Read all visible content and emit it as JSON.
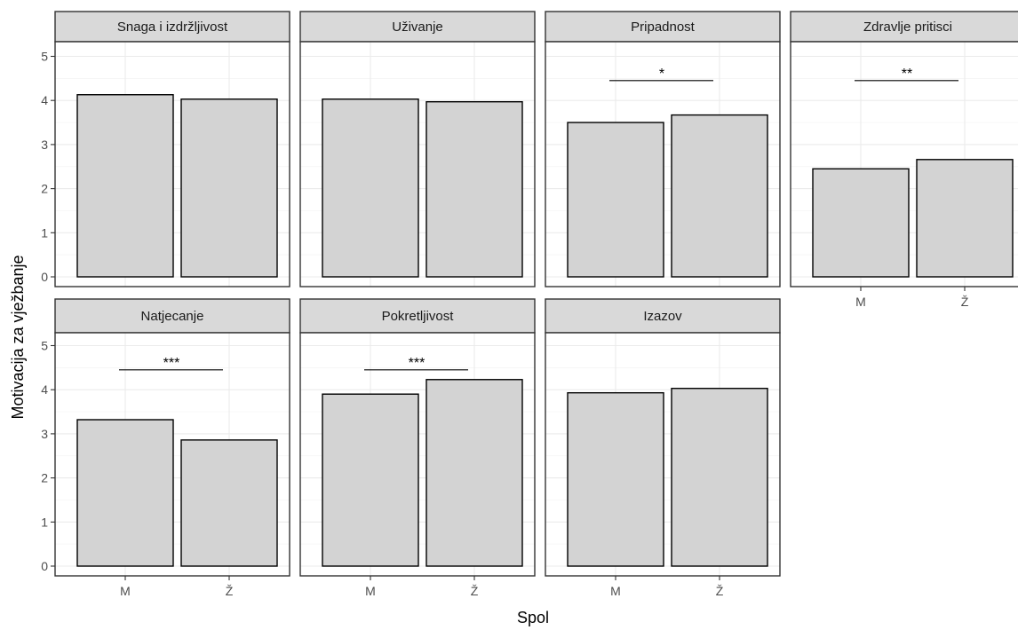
{
  "chart_data": {
    "type": "bar",
    "facet_layout": "wrap",
    "xlabel": "Spol",
    "ylabel": "Motivacija za vježbanje",
    "categories": [
      "M",
      "Ž"
    ],
    "ylim": [
      0,
      5
    ],
    "yticks": [
      0,
      1,
      2,
      3,
      4,
      5
    ],
    "grid": true,
    "colors": {
      "bar_fill": "#d3d3d3",
      "bar_border": "#000000",
      "strip_fill": "#d9d9d9"
    },
    "panels": [
      {
        "title": "Snaga i izdržljivost",
        "values": [
          4.13,
          4.03
        ],
        "significance": ""
      },
      {
        "title": "Uživanje",
        "values": [
          4.03,
          3.97
        ],
        "significance": ""
      },
      {
        "title": "Pripadnost",
        "values": [
          3.5,
          3.67
        ],
        "significance": "*"
      },
      {
        "title": "Zdravlje pritisci",
        "values": [
          2.45,
          2.66
        ],
        "significance": "**"
      },
      {
        "title": "Natjecanje",
        "values": [
          3.32,
          2.86
        ],
        "significance": "***"
      },
      {
        "title": "Pokretljivost",
        "values": [
          3.9,
          4.23
        ],
        "significance": "***"
      },
      {
        "title": "Izazov",
        "values": [
          3.93,
          4.03
        ],
        "significance": ""
      }
    ]
  }
}
